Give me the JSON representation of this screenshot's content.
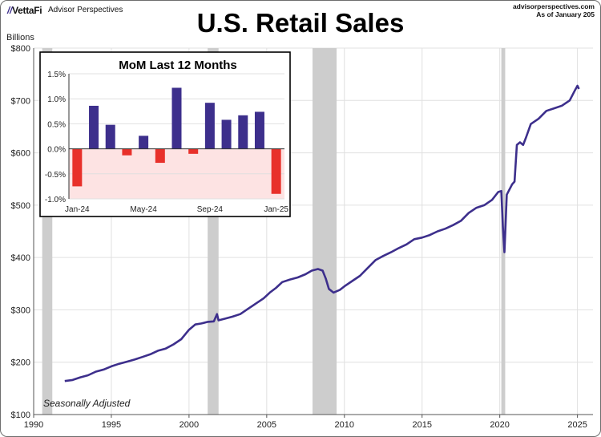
{
  "header": {
    "logo": "VettaFi",
    "logo_sub": "Advisor Perspectives",
    "source_line1": "advisorperspectives.com",
    "source_line2": "As of January 205",
    "title": "U.S. Retail Sales"
  },
  "colors": {
    "line": "#3d2f8c",
    "recession": "#cdcdcd",
    "positive_bar": "#3d2f8c",
    "negative_bar": "#e8302a",
    "negative_zone": "#fde3e3",
    "grid": "#e0e0e0"
  },
  "chart_data": [
    {
      "type": "line",
      "title": "U.S. Retail Sales",
      "ylabel": "Billions",
      "ylim": [
        100,
        800
      ],
      "xlim": [
        1990,
        2026
      ],
      "yticks": [
        "$100",
        "$200",
        "$300",
        "$400",
        "$500",
        "$600",
        "$700",
        "$800"
      ],
      "ytick_values": [
        100,
        200,
        300,
        400,
        500,
        600,
        700,
        800
      ],
      "xticks": [
        "1990",
        "1995",
        "2000",
        "2005",
        "2010",
        "2015",
        "2020",
        "2025"
      ],
      "xtick_values": [
        1990,
        1995,
        2000,
        2005,
        2010,
        2015,
        2020,
        2025
      ],
      "annotation": "Seasonally Adjusted",
      "recessions": [
        {
          "start": 1990.55,
          "end": 1991.2
        },
        {
          "start": 2001.2,
          "end": 2001.9
        },
        {
          "start": 2007.95,
          "end": 2009.5
        },
        {
          "start": 2020.1,
          "end": 2020.35
        }
      ],
      "series": [
        {
          "name": "Retail Sales",
          "points": [
            [
              1992.0,
              164
            ],
            [
              1992.5,
              166
            ],
            [
              1993.0,
              171
            ],
            [
              1993.5,
              175
            ],
            [
              1994.0,
              182
            ],
            [
              1994.5,
              186
            ],
            [
              1995.0,
              192
            ],
            [
              1995.5,
              197
            ],
            [
              1996.0,
              201
            ],
            [
              1996.5,
              205
            ],
            [
              1997.0,
              210
            ],
            [
              1997.5,
              215
            ],
            [
              1998.0,
              222
            ],
            [
              1998.5,
              226
            ],
            [
              1999.0,
              234
            ],
            [
              1999.5,
              244
            ],
            [
              2000.0,
              262
            ],
            [
              2000.4,
              272
            ],
            [
              2000.8,
              274
            ],
            [
              2001.2,
              277
            ],
            [
              2001.6,
              278
            ],
            [
              2001.8,
              292
            ],
            [
              2001.9,
              280
            ],
            [
              2002.3,
              283
            ],
            [
              2002.8,
              287
            ],
            [
              2003.3,
              292
            ],
            [
              2003.8,
              302
            ],
            [
              2004.3,
              312
            ],
            [
              2004.8,
              322
            ],
            [
              2005.2,
              333
            ],
            [
              2005.6,
              342
            ],
            [
              2006.0,
              353
            ],
            [
              2006.5,
              358
            ],
            [
              2007.0,
              362
            ],
            [
              2007.5,
              368
            ],
            [
              2007.9,
              375
            ],
            [
              2008.3,
              378
            ],
            [
              2008.6,
              375
            ],
            [
              2008.8,
              360
            ],
            [
              2009.0,
              340
            ],
            [
              2009.3,
              333
            ],
            [
              2009.7,
              338
            ],
            [
              2010.0,
              345
            ],
            [
              2010.5,
              355
            ],
            [
              2011.0,
              365
            ],
            [
              2011.5,
              380
            ],
            [
              2012.0,
              395
            ],
            [
              2012.5,
              403
            ],
            [
              2013.0,
              410
            ],
            [
              2013.5,
              418
            ],
            [
              2014.0,
              425
            ],
            [
              2014.5,
              435
            ],
            [
              2015.0,
              438
            ],
            [
              2015.5,
              443
            ],
            [
              2016.0,
              450
            ],
            [
              2016.5,
              455
            ],
            [
              2017.0,
              462
            ],
            [
              2017.5,
              470
            ],
            [
              2018.0,
              485
            ],
            [
              2018.5,
              495
            ],
            [
              2019.0,
              500
            ],
            [
              2019.5,
              510
            ],
            [
              2019.9,
              525
            ],
            [
              2020.1,
              527
            ],
            [
              2020.2,
              460
            ],
            [
              2020.3,
              410
            ],
            [
              2020.45,
              520
            ],
            [
              2020.8,
              540
            ],
            [
              2020.95,
              545
            ],
            [
              2021.1,
              615
            ],
            [
              2021.3,
              620
            ],
            [
              2021.5,
              615
            ],
            [
              2021.7,
              630
            ],
            [
              2022.0,
              655
            ],
            [
              2022.5,
              665
            ],
            [
              2023.0,
              680
            ],
            [
              2023.5,
              685
            ],
            [
              2024.0,
              690
            ],
            [
              2024.5,
              700
            ],
            [
              2024.85,
              720
            ],
            [
              2025.0,
              728
            ],
            [
              2025.1,
              722
            ]
          ]
        }
      ]
    },
    {
      "type": "bar",
      "title": "MoM Last 12 Months",
      "categories": [
        "Jan-24",
        "Feb-24",
        "Mar-24",
        "Apr-24",
        "May-24",
        "Jun-24",
        "Jul-24",
        "Aug-24",
        "Sep-24",
        "Oct-24",
        "Nov-24",
        "Dec-24",
        "Jan-25"
      ],
      "values": [
        -0.75,
        0.86,
        0.48,
        -0.13,
        0.26,
        -0.28,
        1.22,
        -0.1,
        0.92,
        0.58,
        0.67,
        0.74,
        -0.9
      ],
      "ylim": [
        -1.0,
        1.5
      ],
      "yticks": [
        "1.5%",
        "1.0%",
        "0.5%",
        "0.0%",
        "-0.5%",
        "-1.0%"
      ],
      "ytick_values": [
        1.5,
        1.0,
        0.5,
        0.0,
        -0.5,
        -1.0
      ],
      "xticks": [
        "Jan-24",
        "May-24",
        "Sep-24",
        "Jan-25"
      ],
      "xtick_indices": [
        0,
        4,
        8,
        12
      ]
    }
  ]
}
